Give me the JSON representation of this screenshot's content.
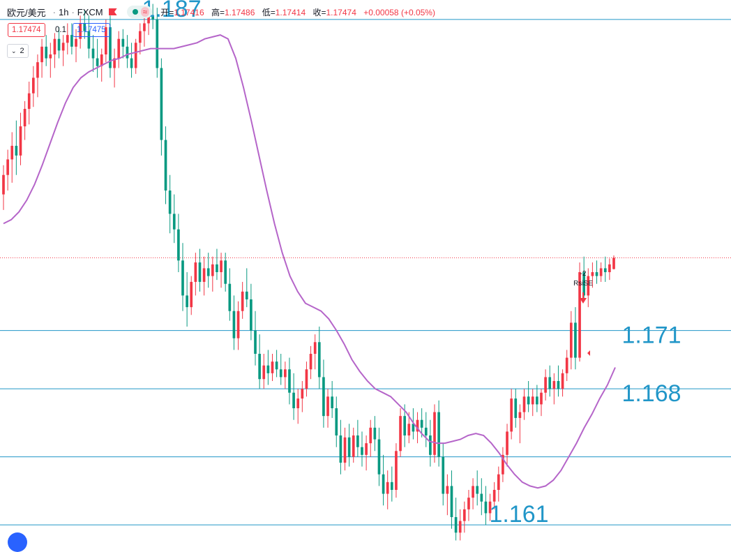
{
  "header": {
    "symbol": "欧元/美元",
    "interval": "1h",
    "source": "FXCM",
    "wave_glyph": "≈",
    "open_label": "开=",
    "open": "1.17416",
    "high_label": "高=",
    "high": "1.17486",
    "low_label": "低=",
    "low": "1.17414",
    "close_label": "收=",
    "close": "1.17474",
    "change": "+0.00058 (+0.05%)"
  },
  "quote": {
    "bid": "1.17474",
    "spread": "0.1",
    "ask": "1.17475"
  },
  "indicators_toggle": {
    "count": "2"
  },
  "colors": {
    "up": "#f23645",
    "down": "#089981",
    "ma": "#b565c9",
    "level_line": "#2196c8",
    "level_text": "#2196c8",
    "price_line": "#f23645"
  },
  "chart_data": {
    "type": "candlestick",
    "price_range": [
      1.16,
      1.188
    ],
    "horizontal_levels": [
      {
        "value": 1.187,
        "label": "1.187"
      },
      {
        "value": 1.171,
        "label": "1.171"
      },
      {
        "value": 1.168,
        "label": "1.168"
      },
      {
        "value": 1.1645,
        "label": ""
      },
      {
        "value": 1.161,
        "label": "1.161"
      }
    ],
    "last_price": 1.17474,
    "signal": {
      "text": "RsiSE",
      "count": "-2",
      "direction": "down"
    },
    "candles": [
      [
        1.178,
        1.1795,
        1.1772,
        1.179
      ],
      [
        1.179,
        1.1803,
        1.1782,
        1.1798
      ],
      [
        1.1798,
        1.1812,
        1.1786,
        1.1805
      ],
      [
        1.1805,
        1.1818,
        1.179,
        1.18
      ],
      [
        1.18,
        1.1822,
        1.1795,
        1.1815
      ],
      [
        1.1815,
        1.1828,
        1.1808,
        1.1824
      ],
      [
        1.1824,
        1.1838,
        1.1816,
        1.1832
      ],
      [
        1.1832,
        1.1846,
        1.1825,
        1.184
      ],
      [
        1.184,
        1.1852,
        1.183,
        1.1848
      ],
      [
        1.1848,
        1.186,
        1.184,
        1.1856
      ],
      [
        1.1856,
        1.1862,
        1.1846,
        1.185
      ],
      [
        1.185,
        1.1858,
        1.184,
        1.1852
      ],
      [
        1.1852,
        1.1863,
        1.1845,
        1.186
      ],
      [
        1.186,
        1.1866,
        1.185,
        1.1854
      ],
      [
        1.1854,
        1.1862,
        1.1846,
        1.1858
      ],
      [
        1.1858,
        1.1868,
        1.1852,
        1.1862
      ],
      [
        1.1862,
        1.1868,
        1.1852,
        1.1856
      ],
      [
        1.1856,
        1.1865,
        1.1848,
        1.186
      ],
      [
        1.186,
        1.1872,
        1.1855,
        1.1868
      ],
      [
        1.1868,
        1.1875,
        1.186,
        1.1864
      ],
      [
        1.1864,
        1.1872,
        1.185,
        1.1855
      ],
      [
        1.1855,
        1.1862,
        1.1843,
        1.185
      ],
      [
        1.185,
        1.186,
        1.184,
        1.1846
      ],
      [
        1.1846,
        1.1855,
        1.1838,
        1.1852
      ],
      [
        1.1852,
        1.187,
        1.1848,
        1.1866
      ],
      [
        1.1866,
        1.1872,
        1.184,
        1.1845
      ],
      [
        1.1845,
        1.1855,
        1.1835,
        1.185
      ],
      [
        1.185,
        1.1864,
        1.1845,
        1.186
      ],
      [
        1.186,
        1.1865,
        1.185,
        1.1856
      ],
      [
        1.1856,
        1.1862,
        1.1845,
        1.185
      ],
      [
        1.185,
        1.1858,
        1.184,
        1.1845
      ],
      [
        1.1845,
        1.186,
        1.1842,
        1.1858
      ],
      [
        1.1858,
        1.1868,
        1.1852,
        1.1864
      ],
      [
        1.1864,
        1.1872,
        1.1856,
        1.1868
      ],
      [
        1.1868,
        1.1875,
        1.1862,
        1.1872
      ],
      [
        1.1872,
        1.1878,
        1.1865,
        1.187
      ],
      [
        1.187,
        1.1876,
        1.184,
        1.1845
      ],
      [
        1.1845,
        1.185,
        1.18,
        1.1808
      ],
      [
        1.1808,
        1.1815,
        1.1775,
        1.1782
      ],
      [
        1.1782,
        1.179,
        1.176,
        1.177
      ],
      [
        1.177,
        1.178,
        1.1755,
        1.1762
      ],
      [
        1.1762,
        1.177,
        1.174,
        1.1746
      ],
      [
        1.1746,
        1.1755,
        1.172,
        1.1728
      ],
      [
        1.1728,
        1.174,
        1.1712,
        1.1722
      ],
      [
        1.1722,
        1.1738,
        1.1718,
        1.1735
      ],
      [
        1.1735,
        1.175,
        1.1728,
        1.1745
      ],
      [
        1.1745,
        1.1752,
        1.173,
        1.1735
      ],
      [
        1.1735,
        1.1748,
        1.1728,
        1.1742
      ],
      [
        1.1742,
        1.175,
        1.1732,
        1.1738
      ],
      [
        1.1738,
        1.1748,
        1.173,
        1.1744
      ],
      [
        1.1744,
        1.1752,
        1.1736,
        1.174
      ],
      [
        1.174,
        1.175,
        1.1732,
        1.1746
      ],
      [
        1.1746,
        1.175,
        1.173,
        1.1734
      ],
      [
        1.1734,
        1.1742,
        1.1715,
        1.172
      ],
      [
        1.172,
        1.1728,
        1.17,
        1.1706
      ],
      [
        1.1706,
        1.1725,
        1.17,
        1.172
      ],
      [
        1.172,
        1.1735,
        1.1716,
        1.173
      ],
      [
        1.173,
        1.1742,
        1.1722,
        1.1726
      ],
      [
        1.1726,
        1.1734,
        1.1705,
        1.171
      ],
      [
        1.171,
        1.172,
        1.1692,
        1.1698
      ],
      [
        1.1698,
        1.1708,
        1.168,
        1.1685
      ],
      [
        1.1685,
        1.1698,
        1.168,
        1.1692
      ],
      [
        1.1692,
        1.17,
        1.1682,
        1.1688
      ],
      [
        1.1688,
        1.1698,
        1.1684,
        1.1694
      ],
      [
        1.1694,
        1.17,
        1.1686,
        1.169
      ],
      [
        1.169,
        1.1698,
        1.1682,
        1.1686
      ],
      [
        1.1686,
        1.1694,
        1.168,
        1.169
      ],
      [
        1.169,
        1.1696,
        1.1672,
        1.1678
      ],
      [
        1.1678,
        1.1688,
        1.1664,
        1.167
      ],
      [
        1.167,
        1.168,
        1.1662,
        1.1675
      ],
      [
        1.1675,
        1.1684,
        1.1668,
        1.168
      ],
      [
        1.168,
        1.1694,
        1.1676,
        1.169
      ],
      [
        1.169,
        1.1702,
        1.1685,
        1.1698
      ],
      [
        1.1698,
        1.1708,
        1.169,
        1.1704
      ],
      [
        1.1704,
        1.1712,
        1.168,
        1.1686
      ],
      [
        1.1686,
        1.1695,
        1.166,
        1.1666
      ],
      [
        1.1666,
        1.168,
        1.166,
        1.1676
      ],
      [
        1.1676,
        1.1684,
        1.1665,
        1.167
      ],
      [
        1.167,
        1.1676,
        1.165,
        1.1656
      ],
      [
        1.1656,
        1.1664,
        1.1636,
        1.1642
      ],
      [
        1.1642,
        1.166,
        1.1638,
        1.1655
      ],
      [
        1.1655,
        1.1662,
        1.164,
        1.1645
      ],
      [
        1.1645,
        1.166,
        1.1642,
        1.1656
      ],
      [
        1.1656,
        1.1664,
        1.1645,
        1.165
      ],
      [
        1.165,
        1.1658,
        1.164,
        1.1646
      ],
      [
        1.1646,
        1.1656,
        1.1638,
        1.1652
      ],
      [
        1.1652,
        1.1664,
        1.1645,
        1.166
      ],
      [
        1.166,
        1.1666,
        1.1648,
        1.1654
      ],
      [
        1.1654,
        1.166,
        1.163,
        1.1636
      ],
      [
        1.1636,
        1.1646,
        1.162,
        1.1626
      ],
      [
        1.1626,
        1.1638,
        1.1618,
        1.1632
      ],
      [
        1.1632,
        1.164,
        1.1622,
        1.1628
      ],
      [
        1.1628,
        1.1652,
        1.1624,
        1.1648
      ],
      [
        1.1648,
        1.167,
        1.1645,
        1.1666
      ],
      [
        1.1666,
        1.1672,
        1.165,
        1.1656
      ],
      [
        1.1656,
        1.1668,
        1.1652,
        1.1662
      ],
      [
        1.1662,
        1.167,
        1.1654,
        1.1658
      ],
      [
        1.1658,
        1.1668,
        1.1652,
        1.1664
      ],
      [
        1.1664,
        1.167,
        1.1655,
        1.166
      ],
      [
        1.166,
        1.1668,
        1.165,
        1.1656
      ],
      [
        1.1656,
        1.1664,
        1.164,
        1.1646
      ],
      [
        1.1646,
        1.1672,
        1.1642,
        1.1668
      ],
      [
        1.1668,
        1.1674,
        1.164,
        1.1645
      ],
      [
        1.1645,
        1.1652,
        1.162,
        1.1626
      ],
      [
        1.1626,
        1.1636,
        1.1615,
        1.163
      ],
      [
        1.163,
        1.1638,
        1.1608,
        1.1614
      ],
      [
        1.1614,
        1.1624,
        1.1602,
        1.1606
      ],
      [
        1.1606,
        1.1618,
        1.1602,
        1.1612
      ],
      [
        1.1612,
        1.1622,
        1.1606,
        1.1618
      ],
      [
        1.1618,
        1.1628,
        1.1612,
        1.1624
      ],
      [
        1.1624,
        1.1634,
        1.1618,
        1.163
      ],
      [
        1.163,
        1.1638,
        1.162,
        1.1626
      ],
      [
        1.1626,
        1.1634,
        1.1615,
        1.1622
      ],
      [
        1.1622,
        1.163,
        1.161,
        1.1616
      ],
      [
        1.1616,
        1.1626,
        1.1612,
        1.1622
      ],
      [
        1.1622,
        1.1632,
        1.1618,
        1.1628
      ],
      [
        1.1628,
        1.164,
        1.1622,
        1.1636
      ],
      [
        1.1636,
        1.165,
        1.1632,
        1.1646
      ],
      [
        1.1646,
        1.1662,
        1.164,
        1.1658
      ],
      [
        1.1658,
        1.168,
        1.1654,
        1.1675
      ],
      [
        1.1675,
        1.168,
        1.166,
        1.1665
      ],
      [
        1.1665,
        1.1672,
        1.1652,
        1.1668
      ],
      [
        1.1668,
        1.168,
        1.1664,
        1.1676
      ],
      [
        1.1676,
        1.1684,
        1.1668,
        1.1672
      ],
      [
        1.1672,
        1.168,
        1.1666,
        1.1676
      ],
      [
        1.1676,
        1.1682,
        1.1668,
        1.1672
      ],
      [
        1.1672,
        1.168,
        1.1666,
        1.1678
      ],
      [
        1.1678,
        1.169,
        1.1674,
        1.1686
      ],
      [
        1.1686,
        1.1692,
        1.1676,
        1.168
      ],
      [
        1.168,
        1.1688,
        1.1672,
        1.1684
      ],
      [
        1.1684,
        1.1692,
        1.1676,
        1.168
      ],
      [
        1.168,
        1.169,
        1.1676,
        1.1688
      ],
      [
        1.1688,
        1.17,
        1.1684,
        1.1696
      ],
      [
        1.1696,
        1.172,
        1.169,
        1.1714
      ],
      [
        1.1714,
        1.1722,
        1.169,
        1.1696
      ],
      [
        1.1696,
        1.1745,
        1.1694,
        1.174
      ],
      [
        1.174,
        1.1748,
        1.1725,
        1.1728
      ],
      [
        1.1728,
        1.1742,
        1.1722,
        1.1738
      ],
      [
        1.1738,
        1.1745,
        1.1732,
        1.174
      ],
      [
        1.174,
        1.1746,
        1.1734,
        1.1738
      ],
      [
        1.1738,
        1.1745,
        1.1735,
        1.1742
      ],
      [
        1.1742,
        1.1748,
        1.1735,
        1.174
      ],
      [
        1.174,
        1.1747,
        1.1736,
        1.1744
      ],
      [
        1.17416,
        1.17486,
        1.17414,
        1.17474
      ]
    ],
    "ma_line": [
      1.1765,
      1.1767,
      1.1771,
      1.1777,
      1.1785,
      1.1795,
      1.1806,
      1.1817,
      1.1827,
      1.1835,
      1.184,
      1.1843,
      1.1845,
      1.1847,
      1.1849,
      1.185,
      1.1852,
      1.1853,
      1.1854,
      1.1855,
      1.1855,
      1.1855,
      1.1855,
      1.1856,
      1.1857,
      1.1858,
      1.186,
      1.1861,
      1.1862,
      1.186,
      1.185,
      1.1835,
      1.1818,
      1.18,
      1.1782,
      1.1765,
      1.175,
      1.1738,
      1.173,
      1.1724,
      1.1722,
      1.172,
      1.1716,
      1.171,
      1.1703,
      1.1695,
      1.1689,
      1.1684,
      1.168,
      1.1678,
      1.1676,
      1.1672,
      1.1668,
      1.1662,
      1.1657,
      1.1653,
      1.1652,
      1.1652,
      1.1653,
      1.1654,
      1.1656,
      1.1657,
      1.1656,
      1.1652,
      1.1647,
      1.1641,
      1.1636,
      1.1632,
      1.163,
      1.1629,
      1.163,
      1.1633,
      1.1638,
      1.1645,
      1.1652,
      1.166,
      1.1667,
      1.1675,
      1.1682,
      1.1691
    ]
  }
}
